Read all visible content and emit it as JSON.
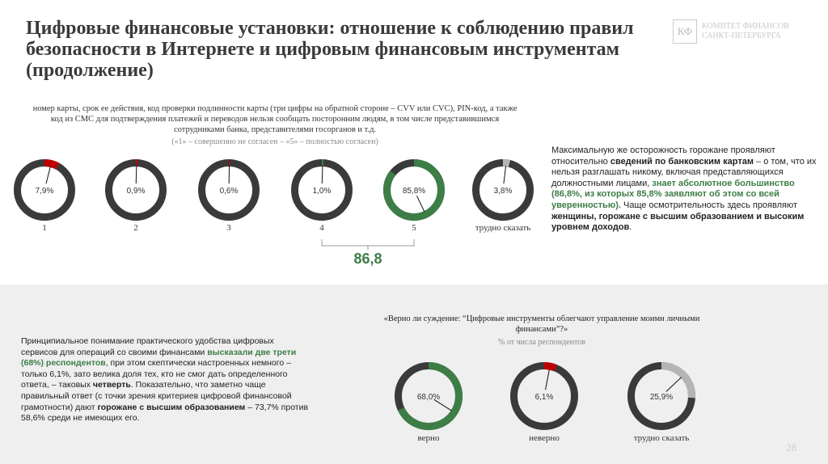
{
  "title": "Цифровые финансовые установки: отношение к соблюдению правил безопасности в Интернете и цифровым финансовым инструментам (продолжение)",
  "logo": {
    "mark": "КФ",
    "line1": "КОМИТЕТ ФИНАНСОВ",
    "line2": "САНКТ-ПЕТЕРБУРГА"
  },
  "top_question": "номер карты, срок ее действия, код проверки подлинности карты (три цифры на обратной стороне – CVV или CVC), PIN-код, а также код из СМС для подтверждения платежей и переводов нельзя сообщать посторонним людям, в том числе представившимся сотрудниками банка, представителями госорганов и т.д.",
  "scale_note": "(«1» – совершенно не согласен – «5» – полностью согласен)",
  "top_total": "86,8",
  "side_text": {
    "p1": "Максимальную же осторожность горожане проявляют относительно ",
    "b1": "сведений по банковским картам",
    "p2": " – о том, что их нельзя разглашать никому, включая представляющихся должностными лицами, ",
    "g1": "знает абсолютное большинство (86,8%, из которых 85,8% заявляют об этом со всей уверенностью).",
    "p3": " Чаще осмотрительность здесь проявляют ",
    "b2": "женщины, горожане с высшим образованием и высоким уровнем доходов",
    "p4": "."
  },
  "bottom_text": {
    "p1": "Принципиальное понимание практического удобства цифровых сервисов для операций со своими финансами ",
    "g1": "высказали две трети (68%) респондентов",
    "p2": ", при этом скептически настроенных немного – только 6,1%, зато велика доля тех, кто не смог дать определенного ответа, – таковых ",
    "b1": "четверть",
    "p3": ". Показательно, что заметно чаще правильный ответ (с точки зрения критериев цифровой финансовой грамотности) дают ",
    "b2": "горожане с высшим образованием",
    "p4": " – 73,7% против 58,6% среди не имеющих его."
  },
  "bottom_question": "«Верно ли суждение: “Цифровые инструменты облегчают управление моими личными финансами”?»",
  "bottom_unit": "% от числа респондентов",
  "page_number": "28",
  "colors": {
    "base": "#3a3a3a",
    "negative": "#c00000",
    "positive": "#3d7d46",
    "neutral": "#b5b5b5",
    "accent_text": "#3d7d46"
  },
  "chart_data": [
    {
      "type": "pie",
      "variant": "donut-per-category",
      "categories": [
        "1",
        "2",
        "3",
        "4",
        "5",
        "трудно сказать"
      ],
      "values": [
        7.9,
        0.9,
        0.6,
        1.0,
        85.8,
        3.8
      ],
      "value_labels": [
        "7,9%",
        "0,9%",
        "0,6%",
        "1,0%",
        "85,8%",
        "3,8%"
      ],
      "segment_colors": [
        "negative",
        "negative",
        "negative",
        "positive",
        "positive",
        "neutral"
      ],
      "bracket": {
        "categories": [
          "4",
          "5"
        ],
        "label": "86,8"
      }
    },
    {
      "type": "pie",
      "variant": "donut-per-category",
      "categories": [
        "верно",
        "неверно",
        "трудно сказать"
      ],
      "values": [
        68.0,
        6.1,
        25.9
      ],
      "value_labels": [
        "68,0%",
        "6,1%",
        "25,9%"
      ],
      "segment_colors": [
        "positive",
        "negative",
        "neutral"
      ]
    }
  ]
}
